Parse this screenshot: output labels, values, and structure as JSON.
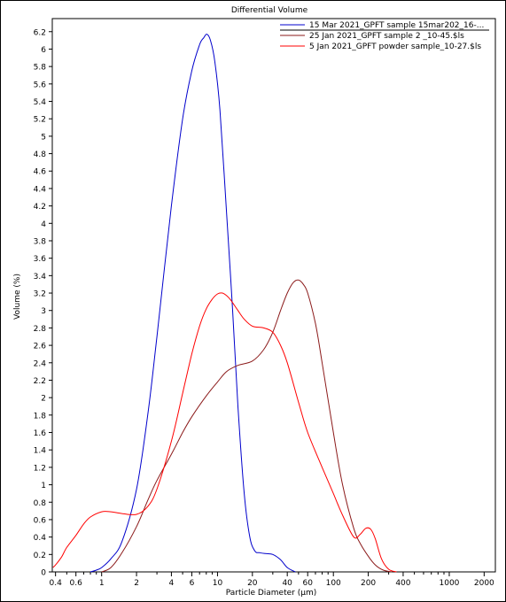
{
  "chart_data": {
    "type": "line",
    "title": "Differential Volume",
    "xlabel": "Particle Diameter (µm)",
    "ylabel": "Volume (%)",
    "x_scale": "log",
    "xlim": [
      0.375,
      2500
    ],
    "ylim": [
      0,
      6.35
    ],
    "grid": false,
    "legend_position": "top-right",
    "x_ticks": [
      0.4,
      0.6,
      1,
      2,
      4,
      6,
      10,
      20,
      40,
      60,
      100,
      200,
      400,
      1000,
      2000
    ],
    "x_tick_labels": [
      "0.4",
      "0.6",
      "1",
      "2",
      "4",
      "6",
      "10",
      "20",
      "40",
      "60",
      "100",
      "200",
      "400",
      "1000",
      "2000"
    ],
    "y_ticks": [
      0,
      0.2,
      0.4,
      0.6,
      0.8,
      1,
      1.2,
      1.4,
      1.6,
      1.8,
      2,
      2.2,
      2.4,
      2.6,
      2.8,
      3,
      3.2,
      3.4,
      3.6,
      3.8,
      4,
      4.2,
      4.4,
      4.6,
      4.8,
      5,
      5.2,
      5.4,
      5.6,
      5.8,
      6,
      6.2
    ],
    "y_tick_labels": [
      "0",
      "0.2",
      "0.4",
      "0.6",
      "0.8",
      "1",
      "1.2",
      "1.4",
      "1.6",
      "1.8",
      "2",
      "2.2",
      "2.4",
      "2.6",
      "2.8",
      "3",
      "3.2",
      "3.4",
      "3.6",
      "3.8",
      "4",
      "4.2",
      "4.4",
      "4.6",
      "4.8",
      "5",
      "5.2",
      "5.4",
      "5.6",
      "5.8",
      "6",
      "6.2"
    ],
    "series": [
      {
        "name": "15 Mar 2021_GPFT sample 15mar202_16-...",
        "color": "#0000cc",
        "x": [
          0.8,
          0.9,
          1.0,
          1.2,
          1.5,
          2.0,
          2.5,
          3.0,
          4.0,
          5.0,
          6.0,
          7.0,
          7.6,
          8.1,
          8.7,
          9.5,
          10.5,
          12.0,
          13.5,
          15.0,
          17.0,
          19.0,
          21.0,
          23.0,
          26.0,
          30.0,
          35.0,
          40.0,
          47.0
        ],
        "y": [
          0.0,
          0.02,
          0.05,
          0.15,
          0.35,
          0.95,
          1.8,
          2.7,
          4.2,
          5.2,
          5.75,
          6.05,
          6.13,
          6.17,
          6.1,
          5.85,
          5.3,
          4.1,
          3.0,
          1.9,
          0.9,
          0.4,
          0.24,
          0.22,
          0.21,
          0.2,
          0.14,
          0.05,
          0.0
        ]
      },
      {
        "name": "25 Jan 2021_GPFT sample 2 _10-45.$ls",
        "color": "#8b1a1a",
        "x": [
          1.0,
          1.2,
          1.5,
          2.0,
          2.5,
          3.0,
          4.0,
          5.0,
          6.0,
          8.0,
          10.0,
          12.0,
          15.0,
          20.0,
          25.0,
          30.0,
          35.0,
          40.0,
          45.0,
          50.0,
          55.0,
          60.0,
          70.0,
          80.0,
          100.0,
          120.0,
          150.0,
          170.0,
          200.0,
          230.0,
          270.0,
          320.0
        ],
        "y": [
          0.0,
          0.05,
          0.22,
          0.52,
          0.82,
          1.05,
          1.35,
          1.6,
          1.78,
          2.02,
          2.18,
          2.3,
          2.37,
          2.42,
          2.55,
          2.75,
          3.0,
          3.2,
          3.32,
          3.35,
          3.3,
          3.2,
          2.85,
          2.4,
          1.6,
          1.0,
          0.5,
          0.33,
          0.18,
          0.08,
          0.02,
          0.0
        ]
      },
      {
        "name": "5 Jan 2021_GPFT powder sample_10-27.$ls",
        "color": "#ff0000",
        "x": [
          0.38,
          0.4,
          0.45,
          0.5,
          0.6,
          0.7,
          0.8,
          1.0,
          1.2,
          1.5,
          2.0,
          2.5,
          3.0,
          4.0,
          5.0,
          6.0,
          7.0,
          8.0,
          9.0,
          10.0,
          11.0,
          12.0,
          13.0,
          15.0,
          17.0,
          20.0,
          25.0,
          30.0,
          35.0,
          40.0,
          50.0,
          60.0,
          80.0,
          100.0,
          120.0,
          150.0,
          170.0,
          190.0,
          210.0,
          230.0,
          260.0,
          300.0,
          350.0
        ],
        "y": [
          0.05,
          0.08,
          0.17,
          0.28,
          0.42,
          0.55,
          0.63,
          0.69,
          0.69,
          0.67,
          0.66,
          0.75,
          0.95,
          1.5,
          2.05,
          2.5,
          2.82,
          3.02,
          3.13,
          3.19,
          3.2,
          3.17,
          3.12,
          3.0,
          2.9,
          2.82,
          2.8,
          2.75,
          2.6,
          2.4,
          1.95,
          1.6,
          1.2,
          0.9,
          0.65,
          0.4,
          0.43,
          0.5,
          0.49,
          0.38,
          0.15,
          0.03,
          0.0
        ]
      }
    ]
  }
}
